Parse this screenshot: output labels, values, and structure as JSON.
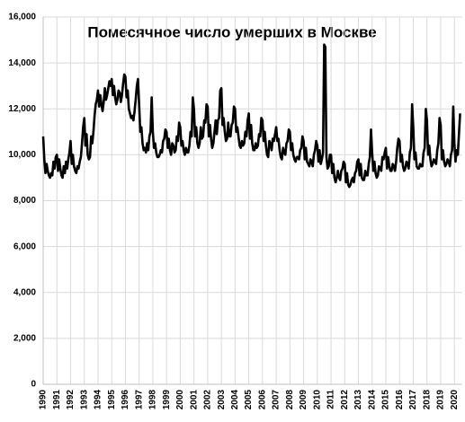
{
  "chart_data": {
    "type": "line",
    "title": "Помесячное число умерших в Москве",
    "categories": [
      "1990",
      null,
      null,
      null,
      null,
      null,
      null,
      null,
      null,
      null,
      null,
      null,
      "1991",
      null,
      null,
      null,
      null,
      null,
      null,
      null,
      null,
      null,
      null,
      null,
      "1992",
      null,
      null,
      null,
      null,
      null,
      null,
      null,
      null,
      null,
      null,
      null,
      "1993",
      null,
      null,
      null,
      null,
      null,
      null,
      null,
      null,
      null,
      null,
      null,
      "1994",
      null,
      null,
      null,
      null,
      null,
      null,
      null,
      null,
      null,
      null,
      null,
      "1995",
      null,
      null,
      null,
      null,
      null,
      null,
      null,
      null,
      null,
      null,
      null,
      "1996",
      null,
      null,
      null,
      null,
      null,
      null,
      null,
      null,
      null,
      null,
      null,
      "1997",
      null,
      null,
      null,
      null,
      null,
      null,
      null,
      null,
      null,
      null,
      null,
      "1998",
      null,
      null,
      null,
      null,
      null,
      null,
      null,
      null,
      null,
      null,
      null,
      "1999",
      null,
      null,
      null,
      null,
      null,
      null,
      null,
      null,
      null,
      null,
      null,
      "2000",
      null,
      null,
      null,
      null,
      null,
      null,
      null,
      null,
      null,
      null,
      null,
      "2001",
      null,
      null,
      null,
      null,
      null,
      null,
      null,
      null,
      null,
      null,
      null,
      "2002",
      null,
      null,
      null,
      null,
      null,
      null,
      null,
      null,
      null,
      null,
      null,
      "2003",
      null,
      null,
      null,
      null,
      null,
      null,
      null,
      null,
      null,
      null,
      null,
      "2004",
      null,
      null,
      null,
      null,
      null,
      null,
      null,
      null,
      null,
      null,
      null,
      "2005",
      null,
      null,
      null,
      null,
      null,
      null,
      null,
      null,
      null,
      null,
      null,
      "2006",
      null,
      null,
      null,
      null,
      null,
      null,
      null,
      null,
      null,
      null,
      null,
      "2007",
      null,
      null,
      null,
      null,
      null,
      null,
      null,
      null,
      null,
      null,
      null,
      "2008",
      null,
      null,
      null,
      null,
      null,
      null,
      null,
      null,
      null,
      null,
      null,
      "2009",
      null,
      null,
      null,
      null,
      null,
      null,
      null,
      null,
      null,
      null,
      null,
      "2010",
      null,
      null,
      null,
      null,
      null,
      null,
      null,
      null,
      null,
      null,
      null,
      "2011",
      null,
      null,
      null,
      null,
      null,
      null,
      null,
      null,
      null,
      null,
      null,
      "2012",
      null,
      null,
      null,
      null,
      null,
      null,
      null,
      null,
      null,
      null,
      null,
      "2013",
      null,
      null,
      null,
      null,
      null,
      null,
      null,
      null,
      null,
      null,
      null,
      "2014",
      null,
      null,
      null,
      null,
      null,
      null,
      null,
      null,
      null,
      null,
      null,
      "2015",
      null,
      null,
      null,
      null,
      null,
      null,
      null,
      null,
      null,
      null,
      null,
      "2016",
      null,
      null,
      null,
      null,
      null,
      null,
      null,
      null,
      null,
      null,
      null,
      "2017",
      null,
      null,
      null,
      null,
      null,
      null,
      null,
      null,
      null,
      null,
      null,
      "2018",
      null,
      null,
      null,
      null,
      null,
      null,
      null,
      null,
      null,
      null,
      null,
      "2019",
      null,
      null,
      null,
      null,
      null,
      null,
      null,
      null,
      null,
      null,
      null,
      "2020",
      null,
      null,
      null,
      null,
      null
    ],
    "values": [
      10800,
      9800,
      9200,
      9600,
      9300,
      9100,
      9000,
      9200,
      9100,
      9700,
      9400,
      9900,
      10000,
      9300,
      9800,
      9400,
      9100,
      9000,
      9500,
      9200,
      9700,
      9400,
      9800,
      10100,
      10600,
      9600,
      10000,
      9500,
      9300,
      9200,
      9500,
      9400,
      9700,
      9900,
      10500,
      11200,
      11600,
      10400,
      10900,
      10000,
      9800,
      9900,
      10800,
      10500,
      11000,
      11700,
      12200,
      12400,
      12800,
      12100,
      12600,
      12200,
      11900,
      12300,
      12900,
      12400,
      12600,
      12900,
      13200,
      13000,
      13300,
      12600,
      13000,
      12500,
      12200,
      12400,
      12800,
      12700,
      12300,
      12600,
      13100,
      13500,
      13400,
      12500,
      12800,
      12000,
      11800,
      11600,
      11700,
      11500,
      11900,
      12400,
      13000,
      13300,
      12200,
      11000,
      11200,
      10500,
      10200,
      10300,
      10100,
      10500,
      10200,
      10800,
      11000,
      12500,
      11000,
      10300,
      10500,
      10100,
      9900,
      9900,
      10000,
      10200,
      10100,
      10600,
      10700,
      11100,
      11000,
      10300,
      10700,
      10200,
      10000,
      10500,
      10400,
      10100,
      10200,
      10800,
      10600,
      11400,
      11200,
      10400,
      10600,
      10200,
      10000,
      10300,
      10100,
      10100,
      10400,
      11000,
      10800,
      12500,
      12000,
      10800,
      11200,
      10500,
      10300,
      10500,
      11200,
      10700,
      10800,
      11500,
      11400,
      12200,
      12100,
      10800,
      11300,
      10700,
      10300,
      10500,
      11000,
      11500,
      10900,
      11500,
      11600,
      12800,
      12900,
      11300,
      11600,
      11000,
      10600,
      10700,
      11400,
      10800,
      10800,
      11300,
      11400,
      12100,
      12000,
      11000,
      11200,
      10800,
      10400,
      10300,
      10600,
      10400,
      10500,
      11000,
      10800,
      11500,
      11800,
      10700,
      11300,
      10500,
      10200,
      10200,
      10500,
      10300,
      10400,
      10900,
      10800,
      11600,
      11500,
      10600,
      11000,
      10400,
      10000,
      9900,
      10600,
      10500,
      10200,
      10700,
      10600,
      10900,
      11200,
      10600,
      10700,
      10200,
      9900,
      9800,
      10300,
      10100,
      10000,
      10500,
      10600,
      11100,
      11000,
      10200,
      10500,
      10000,
      9800,
      9700,
      9900,
      9900,
      9800,
      10200,
      10300,
      10800,
      10600,
      9800,
      10300,
      9700,
      9600,
      9500,
      9800,
      9700,
      9500,
      10000,
      10200,
      10600,
      10400,
      9700,
      10200,
      9600,
      9800,
      10100,
      14800,
      14700,
      9900,
      9400,
      9500,
      10000,
      10000,
      9200,
      9600,
      9000,
      8800,
      9000,
      9300,
      9000,
      8900,
      9300,
      9400,
      9700,
      9600,
      8800,
      9200,
      8700,
      8600,
      8700,
      8900,
      9000,
      8800,
      9200,
      9300,
      9700,
      9800,
      9100,
      9600,
      9000,
      8900,
      8900,
      9300,
      9100,
      9100,
      9600,
      9900,
      11100,
      10100,
      9300,
      9700,
      9200,
      9000,
      9100,
      9500,
      9400,
      9300,
      9900,
      9800,
      10100,
      10300,
      9400,
      9900,
      9500,
      9300,
      9300,
      9600,
      9500,
      9300,
      9700,
      10300,
      10700,
      10600,
      9700,
      10000,
      9500,
      9300,
      9400,
      9700,
      9600,
      9400,
      10100,
      10300,
      12200,
      11200,
      9800,
      10100,
      9500,
      9400,
      9400,
      9600,
      9500,
      9500,
      10100,
      10300,
      12000,
      11500,
      10000,
      10400,
      9800,
      9500,
      9600,
      9800,
      9700,
      9600,
      10200,
      10500,
      11600,
      11300,
      9800,
      10200,
      9700,
      9500,
      9600,
      9800,
      9700,
      9500,
      10000,
      10200,
      12100,
      10500,
      9700,
      10200,
      10000,
      10900,
      11800
    ],
    "color": "#000000",
    "ylim": [
      0,
      16000
    ],
    "yticks": [
      0,
      {
        "value": 2000,
        "label": "2,000"
      },
      {
        "value": 4000,
        "label": "4,000"
      },
      {
        "value": 6000,
        "label": "6,000"
      },
      {
        "value": 8000,
        "label": "8,000"
      },
      {
        "value": 10000,
        "label": "10,000"
      },
      {
        "value": 12000,
        "label": "12,000"
      },
      {
        "value": 14000,
        "label": "14,000"
      },
      {
        "value": 16000,
        "label": "16,000"
      }
    ],
    "grid": true
  }
}
